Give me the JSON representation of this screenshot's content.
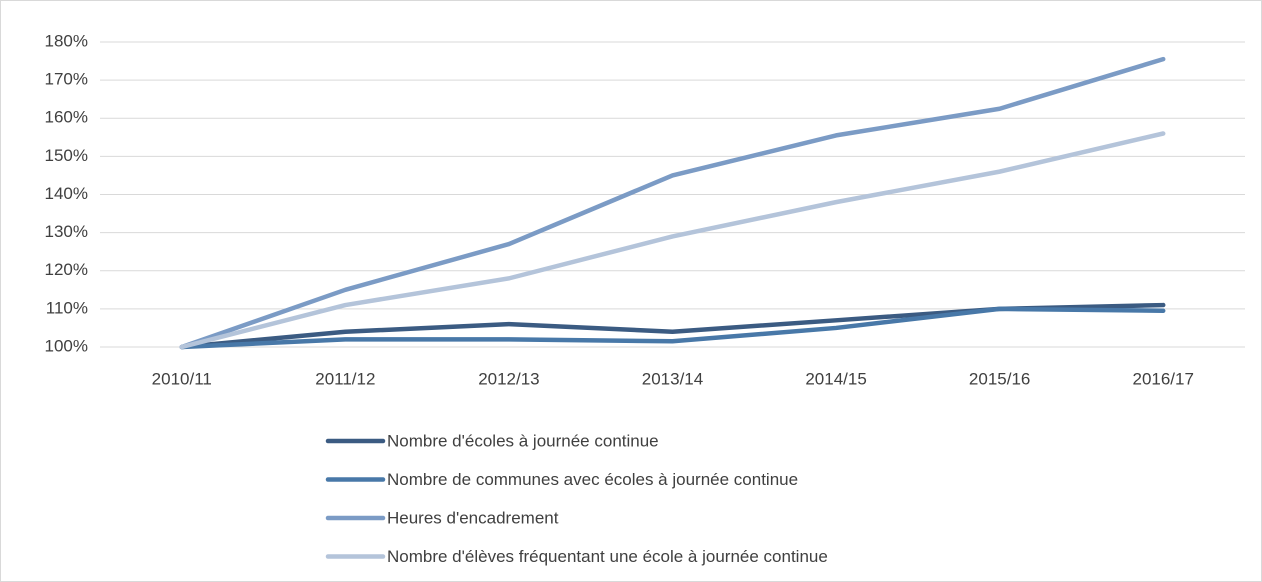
{
  "chart_data": {
    "type": "line",
    "categories": [
      "2010/11",
      "2011/12",
      "2012/13",
      "2013/14",
      "2014/15",
      "2015/16",
      "2016/17"
    ],
    "series": [
      {
        "name": "Nombre d'écoles à journée continue",
        "color": "#3b5b82",
        "values": [
          100,
          104,
          106,
          104,
          107,
          110,
          111
        ]
      },
      {
        "name": "Nombre de communes avec écoles à journée continue",
        "color": "#4878a8",
        "values": [
          100,
          102,
          102,
          101.5,
          105,
          110,
          109.5
        ]
      },
      {
        "name": "Heures d'encadrement",
        "color": "#7b9bc5",
        "values": [
          100,
          115,
          127,
          145,
          155.5,
          162.5,
          175.5
        ]
      },
      {
        "name": "Nombre d'élèves fréquentant une école à journée continue",
        "color": "#b4c4da",
        "values": [
          100,
          111,
          118,
          129,
          138,
          146,
          156
        ]
      }
    ],
    "ylim": [
      100,
      180
    ],
    "yticks": [
      {
        "value": 100,
        "label": "100%"
      },
      {
        "value": 110,
        "label": "110%"
      },
      {
        "value": 120,
        "label": "120%"
      },
      {
        "value": 130,
        "label": "130%"
      },
      {
        "value": 140,
        "label": "140%"
      },
      {
        "value": 150,
        "label": "150%"
      },
      {
        "value": 160,
        "label": "160%"
      },
      {
        "value": 170,
        "label": "170%"
      },
      {
        "value": 180,
        "label": "180%"
      }
    ],
    "grid": true,
    "legend": "bottom"
  }
}
